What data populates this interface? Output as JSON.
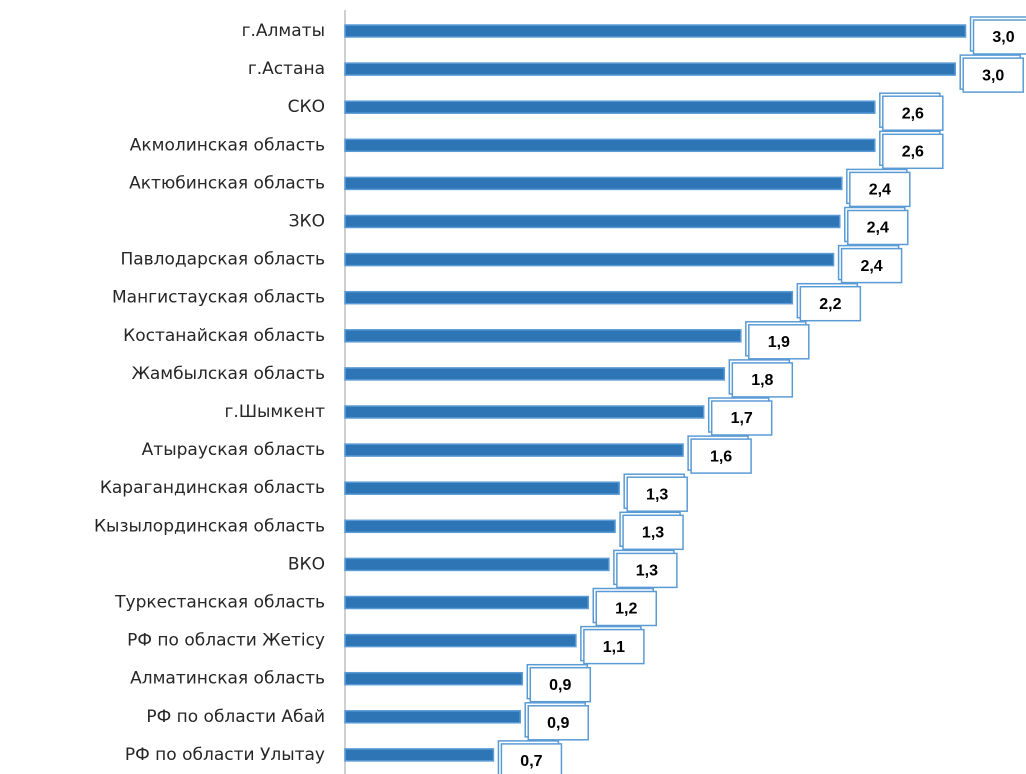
{
  "chart_data": {
    "type": "barh",
    "categories": [
      "г.Алматы",
      "г.Астана",
      "СКО",
      "Акмолинская область",
      "Актюбинская область",
      "ЗКО",
      "Павлодарская область",
      "Мангистауская область",
      "Костанайская область",
      "Жамбылская область",
      "г.Шымкент",
      "Атырауская область",
      "Карагандинская область",
      "Кызылординская область",
      "ВКО",
      "Туркестанская область ",
      "РФ по области Жетісу",
      "Алматинская область",
      "РФ по области Абай",
      "РФ по области Улытау"
    ],
    "values": [
      3.01,
      2.96,
      2.57,
      2.57,
      2.41,
      2.4,
      2.37,
      2.17,
      1.92,
      1.84,
      1.74,
      1.64,
      1.33,
      1.31,
      1.28,
      1.18,
      1.12,
      0.86,
      0.85,
      0.72
    ],
    "value_labels": [
      "3,0",
      "3,0",
      "2,6",
      "2,6",
      "2,4",
      "2,4",
      "2,4",
      "2,2",
      "1,9",
      "1,8",
      "1,7",
      "1,6",
      "1,3",
      "1,3",
      "1,3",
      "1,2",
      "1,1",
      "0,9",
      "0,9",
      "0,7"
    ],
    "color": "#2e75b6",
    "xlim": [
      0,
      3.25
    ]
  }
}
